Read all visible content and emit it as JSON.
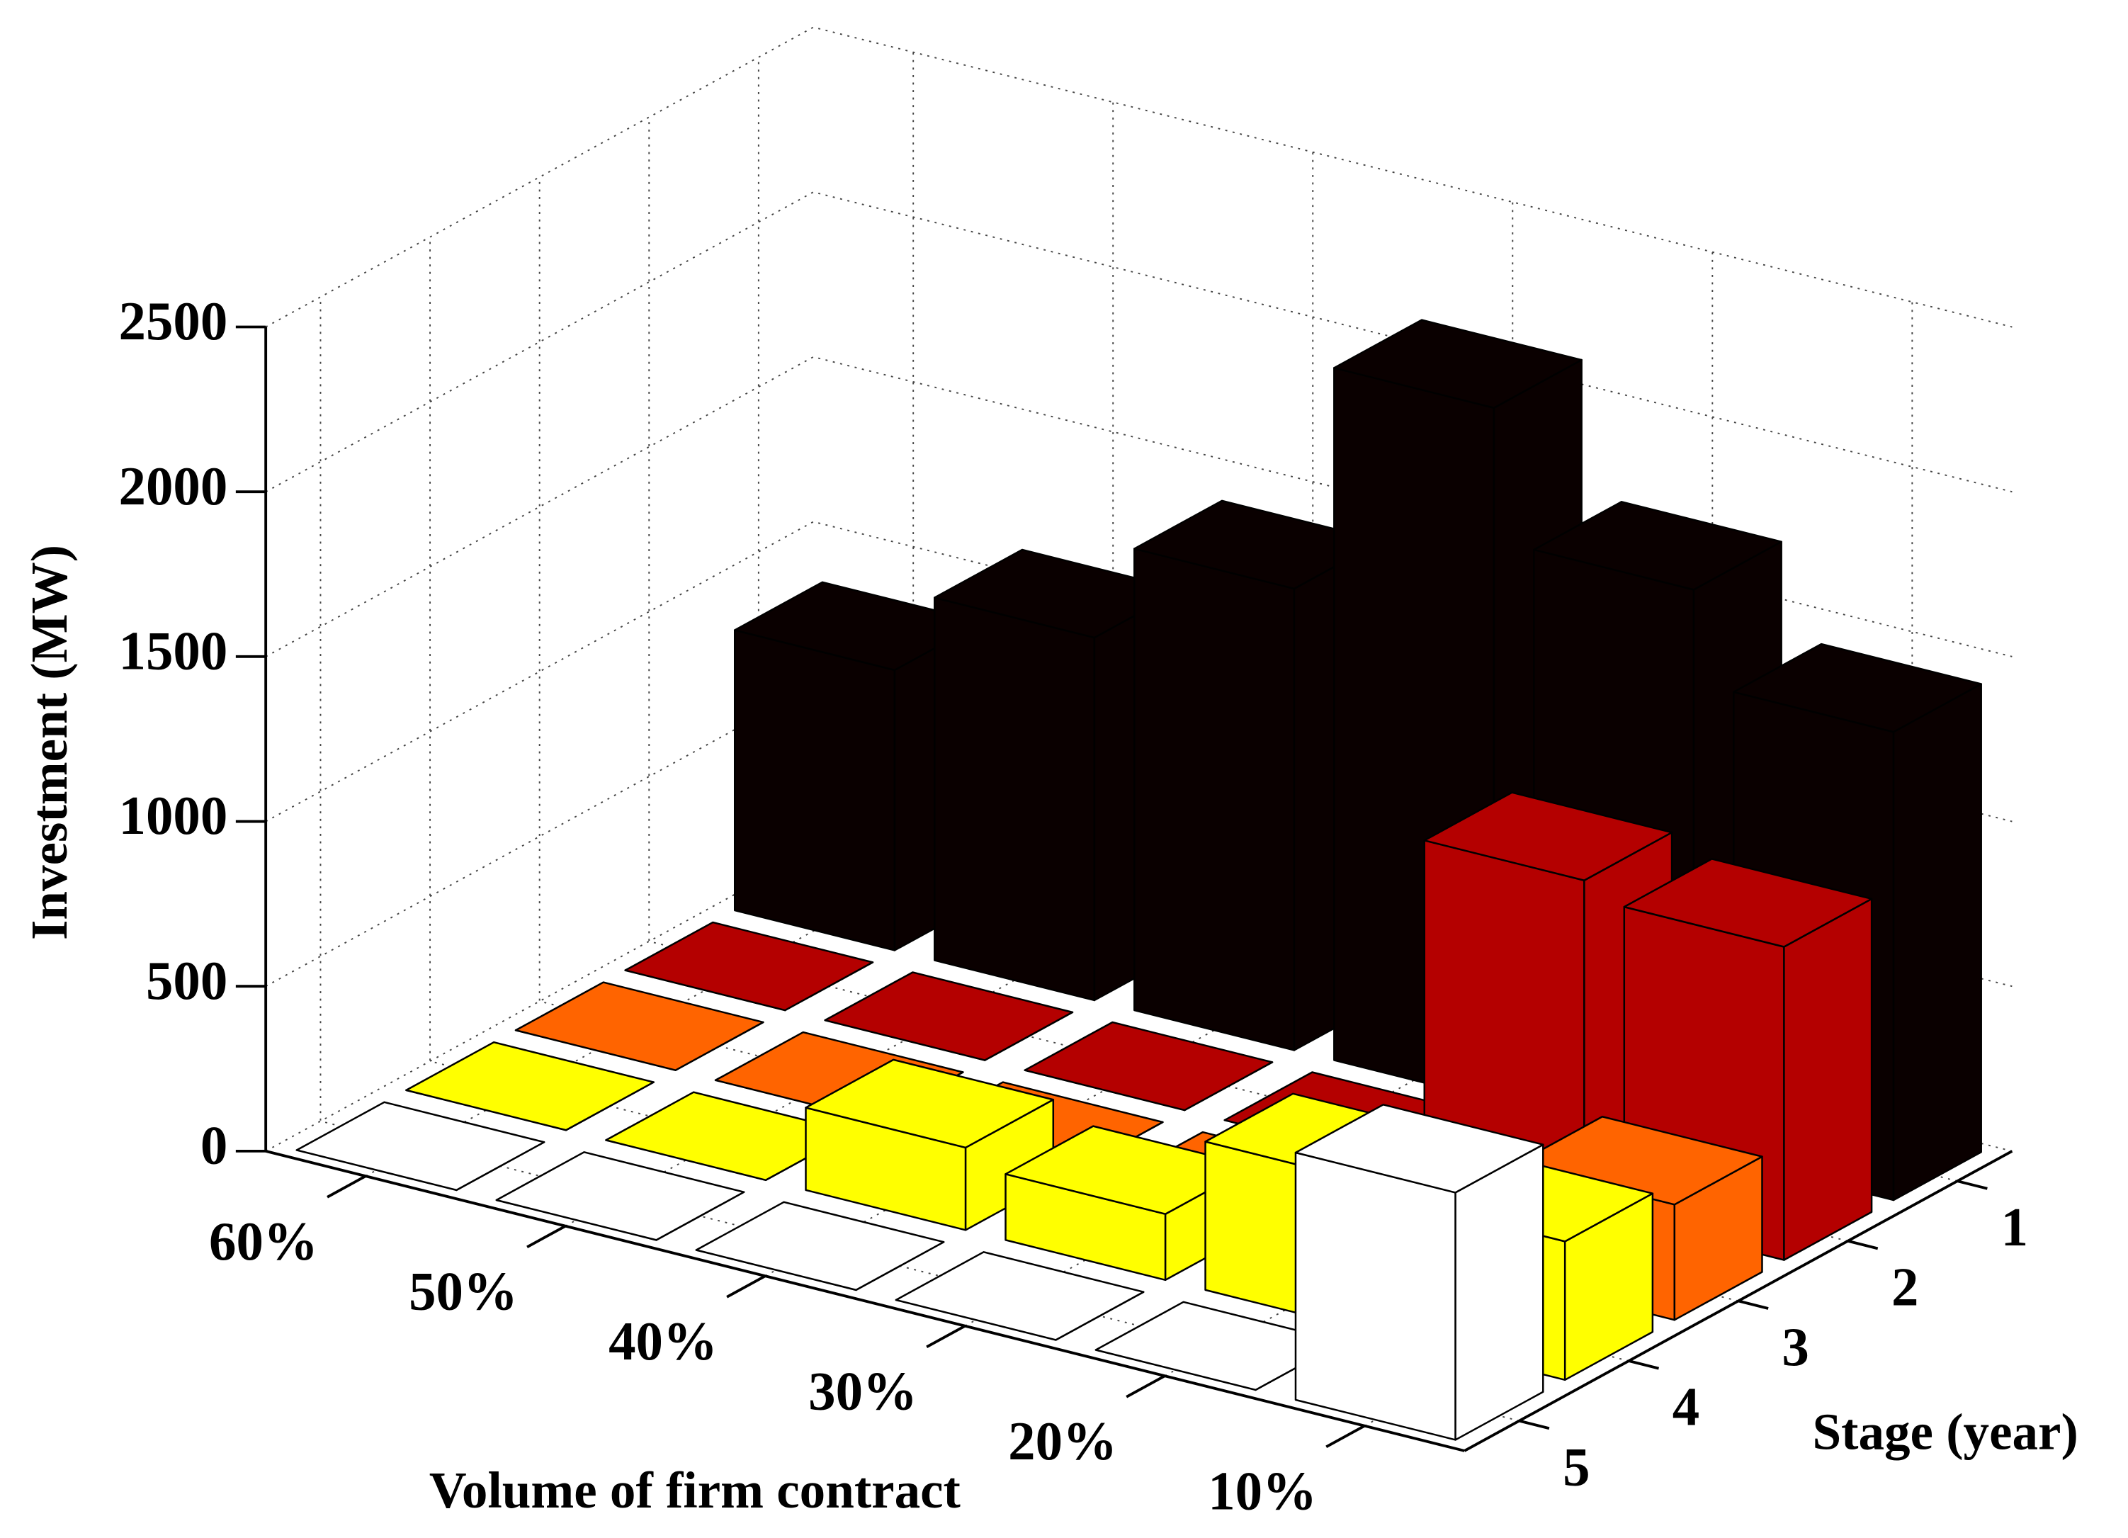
{
  "chart_data": {
    "type": "bar3d",
    "categories": [
      "60%",
      "50%",
      "40%",
      "30%",
      "20%",
      "10%"
    ],
    "xlabel": "Volume of firm contract",
    "ylabel": "Stage (year)",
    "zlabel": "Investment (MW)",
    "series": [
      {
        "name": "1",
        "color": "#0a0000",
        "values": [
          850,
          1100,
          1400,
          2100,
          1700,
          1420
        ]
      },
      {
        "name": "2",
        "color": "#b40000",
        "values": [
          0,
          0,
          0,
          0,
          1000,
          950
        ]
      },
      {
        "name": "3",
        "color": "#ff6400",
        "values": [
          0,
          0,
          0,
          0,
          0,
          350
        ]
      },
      {
        "name": "4",
        "color": "#ffff00",
        "values": [
          0,
          0,
          250,
          200,
          450,
          420
        ]
      },
      {
        "name": "5",
        "color": "#ffffff",
        "values": [
          0,
          0,
          0,
          0,
          0,
          750
        ]
      }
    ],
    "zlim": [
      0,
      2500
    ],
    "zticks": [
      0,
      500,
      1000,
      1500,
      2000,
      2500
    ],
    "grid": true
  }
}
